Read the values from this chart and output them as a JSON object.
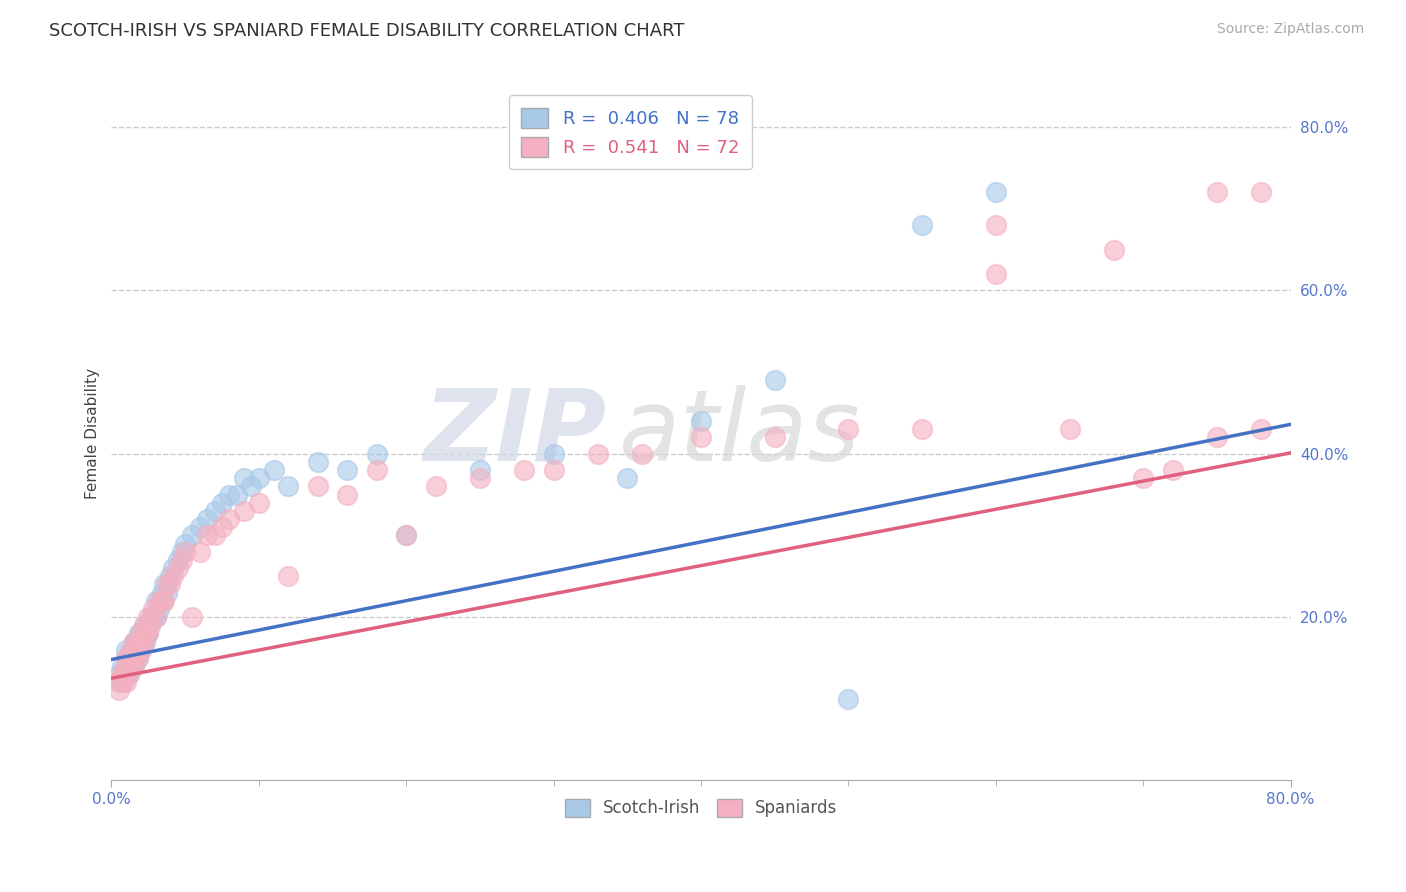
{
  "title": "SCOTCH-IRISH VS SPANIARD FEMALE DISABILITY CORRELATION CHART",
  "source_text": "Source: ZipAtlas.com",
  "ylabel": "Female Disability",
  "scotch_irish_color": "#a8c8e8",
  "spaniard_color": "#f4b0c0",
  "scotch_irish_line_color": "#4472c4",
  "spaniard_line_color": "#e06080",
  "scotch_irish_R": 0.406,
  "scotch_irish_N": 78,
  "spaniard_R": 0.541,
  "spaniard_N": 72,
  "watermark_zip": "ZIP",
  "watermark_atlas": "atlas",
  "xlim": [
    0.0,
    0.8
  ],
  "ylim": [
    0.0,
    0.85
  ],
  "ytick_positions": [
    0.2,
    0.4,
    0.6,
    0.8
  ],
  "xtick_only": [
    0.0,
    0.8
  ],
  "tick_color": "#5577cc",
  "title_fontsize": 13,
  "source_fontsize": 10,
  "scotch_irish_x": [
    0.005,
    0.005,
    0.007,
    0.008,
    0.008,
    0.01,
    0.01,
    0.01,
    0.01,
    0.012,
    0.012,
    0.012,
    0.013,
    0.013,
    0.014,
    0.015,
    0.015,
    0.015,
    0.015,
    0.016,
    0.016,
    0.017,
    0.017,
    0.018,
    0.018,
    0.018,
    0.019,
    0.019,
    0.02,
    0.02,
    0.021,
    0.022,
    0.022,
    0.023,
    0.023,
    0.024,
    0.025,
    0.025,
    0.026,
    0.027,
    0.028,
    0.03,
    0.03,
    0.032,
    0.033,
    0.034,
    0.035,
    0.036,
    0.038,
    0.04,
    0.042,
    0.045,
    0.048,
    0.05,
    0.055,
    0.06,
    0.065,
    0.07,
    0.075,
    0.08,
    0.085,
    0.09,
    0.095,
    0.1,
    0.11,
    0.12,
    0.14,
    0.16,
    0.18,
    0.2,
    0.25,
    0.3,
    0.35,
    0.4,
    0.45,
    0.5,
    0.55,
    0.6
  ],
  "scotch_irish_y": [
    0.12,
    0.13,
    0.14,
    0.12,
    0.13,
    0.13,
    0.14,
    0.15,
    0.16,
    0.13,
    0.14,
    0.15,
    0.14,
    0.16,
    0.15,
    0.14,
    0.15,
    0.16,
    0.17,
    0.15,
    0.16,
    0.16,
    0.17,
    0.15,
    0.16,
    0.17,
    0.16,
    0.18,
    0.16,
    0.18,
    0.17,
    0.17,
    0.18,
    0.17,
    0.19,
    0.18,
    0.18,
    0.19,
    0.19,
    0.2,
    0.2,
    0.2,
    0.22,
    0.21,
    0.22,
    0.23,
    0.22,
    0.24,
    0.23,
    0.25,
    0.26,
    0.27,
    0.28,
    0.29,
    0.3,
    0.31,
    0.32,
    0.33,
    0.34,
    0.35,
    0.35,
    0.37,
    0.36,
    0.37,
    0.38,
    0.36,
    0.39,
    0.38,
    0.4,
    0.3,
    0.38,
    0.4,
    0.37,
    0.44,
    0.49,
    0.1,
    0.68,
    0.72
  ],
  "spaniard_x": [
    0.005,
    0.005,
    0.007,
    0.008,
    0.008,
    0.01,
    0.01,
    0.01,
    0.012,
    0.012,
    0.013,
    0.013,
    0.015,
    0.015,
    0.015,
    0.016,
    0.017,
    0.018,
    0.018,
    0.019,
    0.02,
    0.02,
    0.022,
    0.022,
    0.023,
    0.025,
    0.025,
    0.026,
    0.028,
    0.03,
    0.032,
    0.034,
    0.036,
    0.038,
    0.04,
    0.042,
    0.045,
    0.048,
    0.05,
    0.055,
    0.06,
    0.065,
    0.07,
    0.075,
    0.08,
    0.09,
    0.1,
    0.12,
    0.14,
    0.16,
    0.18,
    0.2,
    0.22,
    0.25,
    0.28,
    0.3,
    0.33,
    0.36,
    0.4,
    0.45,
    0.5,
    0.55,
    0.6,
    0.65,
    0.7,
    0.72,
    0.75,
    0.78,
    0.75,
    0.68,
    0.6,
    0.78
  ],
  "spaniard_y": [
    0.11,
    0.12,
    0.13,
    0.12,
    0.13,
    0.12,
    0.14,
    0.15,
    0.13,
    0.15,
    0.14,
    0.16,
    0.14,
    0.15,
    0.17,
    0.16,
    0.16,
    0.15,
    0.17,
    0.17,
    0.16,
    0.18,
    0.17,
    0.19,
    0.18,
    0.18,
    0.2,
    0.19,
    0.21,
    0.2,
    0.22,
    0.22,
    0.22,
    0.24,
    0.24,
    0.25,
    0.26,
    0.27,
    0.28,
    0.2,
    0.28,
    0.3,
    0.3,
    0.31,
    0.32,
    0.33,
    0.34,
    0.25,
    0.36,
    0.35,
    0.38,
    0.3,
    0.36,
    0.37,
    0.38,
    0.38,
    0.4,
    0.4,
    0.42,
    0.42,
    0.43,
    0.43,
    0.62,
    0.43,
    0.37,
    0.38,
    0.42,
    0.43,
    0.72,
    0.65,
    0.68,
    0.72
  ]
}
